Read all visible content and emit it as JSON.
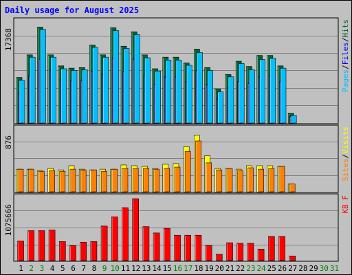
{
  "chart_data": {
    "type": "bar",
    "title": "Daily usage for August 2025",
    "categories": [
      "1",
      "2",
      "3",
      "4",
      "5",
      "6",
      "7",
      "8",
      "9",
      "10",
      "11",
      "12",
      "13",
      "14",
      "15",
      "16",
      "17",
      "18",
      "19",
      "20",
      "21",
      "22",
      "23",
      "24",
      "25",
      "26",
      "27",
      "28",
      "29",
      "30",
      "31"
    ],
    "weekend_days": [
      "2",
      "3",
      "9",
      "10",
      "16",
      "17",
      "23",
      "24",
      "30",
      "31"
    ],
    "panels": [
      {
        "id": "hits-files-pages",
        "ylabel_max": "17368",
        "ylim": [
          0,
          17368
        ],
        "legend": [
          {
            "label": "Pages",
            "color": "#00c0ff"
          },
          {
            "label": "/",
            "color": "#000000"
          },
          {
            "label": "Files",
            "color": "#0000ff"
          },
          {
            "label": "/",
            "color": "#000000"
          },
          {
            "label": "Hits",
            "color": "#006633"
          }
        ],
        "series": [
          {
            "name": "Hits",
            "color": "#006633",
            "values": [
              7900,
              11800,
              16600,
              11800,
              9900,
              9500,
              9600,
              13500,
              11800,
              16500,
              13300,
              15800,
              11800,
              9400,
              11400,
              11400,
              10400,
              12800,
              9600,
              5900,
              8400,
              10700,
              9800,
              11700,
              11700,
              9900,
              1700,
              0,
              0,
              0,
              0
            ]
          },
          {
            "name": "Files",
            "color": "#0000ff",
            "values": [
              5200,
              8200,
              11100,
              9200,
              7500,
              7300,
              7400,
              9000,
              8400,
              11300,
              9000,
              11100,
              8200,
              6700,
              8000,
              8000,
              7200,
              9100,
              6700,
              4200,
              6100,
              7200,
              6900,
              8000,
              8200,
              7200,
              1200,
              0,
              0,
              0,
              0
            ]
          },
          {
            "name": "Pages",
            "color": "#00c0ff",
            "values": [
              7400,
              11400,
              16200,
              11400,
              9400,
              9100,
              9200,
              13100,
              11400,
              16000,
              12900,
              15300,
              11300,
              9000,
              10900,
              10900,
              10000,
              12200,
              9100,
              5400,
              8000,
              10300,
              9200,
              11000,
              11200,
              9500,
              1300,
              0,
              0,
              0,
              0
            ]
          }
        ]
      },
      {
        "id": "visits-sites",
        "ylabel_max": "876",
        "ylim": [
          0,
          876
        ],
        "legend": [
          {
            "label": "Sites",
            "color": "#ff8000"
          },
          {
            "label": "/",
            "color": "#000000"
          },
          {
            "label": "Visits",
            "color": "#ffff00"
          }
        ],
        "series": [
          {
            "name": "Visits",
            "color": "#ffff00",
            "values": [
              320,
              320,
              300,
              330,
              310,
              370,
              320,
              310,
              320,
              320,
              380,
              370,
              360,
              330,
              390,
              400,
              640,
              800,
              510,
              330,
              330,
              320,
              370,
              370,
              370,
              360,
              110,
              0,
              0,
              0,
              0
            ]
          },
          {
            "name": "Sites",
            "color": "#ff8000",
            "values": [
              320,
              320,
              290,
              300,
              290,
              320,
              310,
              310,
              290,
              320,
              330,
              330,
              330,
              320,
              330,
              350,
              570,
              720,
              410,
              310,
              330,
              300,
              340,
              320,
              330,
              360,
              110,
              0,
              0,
              0,
              0
            ]
          }
        ]
      },
      {
        "id": "kbf",
        "ylabel_max": "1075666",
        "ylim": [
          0,
          1075666
        ],
        "legend": [
          {
            "label": "KB F",
            "color": "#ff0000"
          }
        ],
        "series": [
          {
            "name": "KB F",
            "color": "#ff0000",
            "values": [
              340000,
              520000,
              520000,
              530000,
              330000,
              260000,
              320000,
              330000,
              600000,
              760000,
              920000,
              1075666,
              590000,
              480000,
              560000,
              440000,
              440000,
              440000,
              260000,
              110000,
              310000,
              300000,
              300000,
              200000,
              420000,
              420000,
              80000,
              0,
              0,
              0,
              0
            ]
          }
        ]
      }
    ],
    "colors": {
      "background": "#c0c0c0",
      "title": "#0000ff",
      "weekday_label": "#000000",
      "weekend_label": "#008000"
    }
  }
}
